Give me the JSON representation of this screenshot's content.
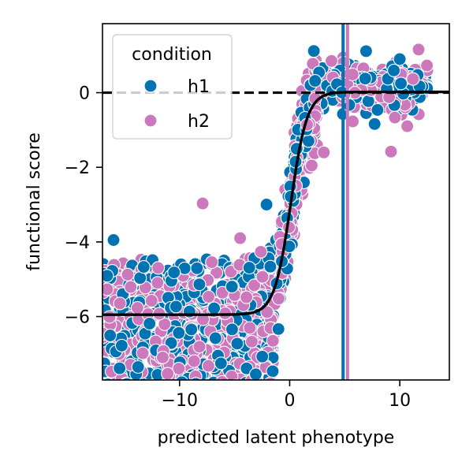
{
  "chart_data": {
    "type": "scatter",
    "xlabel": "predicted latent phenotype",
    "ylabel": "functional score",
    "xlim": [
      -17,
      14.5
    ],
    "ylim": [
      -7.7,
      1.85
    ],
    "xticks": [
      -10,
      0,
      10
    ],
    "xtick_labels": [
      "−10",
      "0",
      "10"
    ],
    "yticks": [
      0,
      -2,
      -4,
      -6
    ],
    "ytick_labels": [
      "0",
      "−2",
      "−4",
      "−6"
    ],
    "legend": {
      "title": "condition",
      "placement": "upper-left",
      "entries": [
        {
          "label": "h1",
          "color": "#0173b2"
        },
        {
          "label": "h2",
          "color": "#cc78bc"
        }
      ]
    },
    "series": [
      {
        "name": "h1",
        "color": "#0173b2",
        "vline_x": 4.85
      },
      {
        "name": "h2",
        "color": "#cc78bc",
        "vline_x": 5.25
      }
    ],
    "reference_hline": {
      "y": 0,
      "style": "dashed",
      "color": "#000000"
    },
    "fit_curve": {
      "type": "sigmoid",
      "lower": -5.95,
      "upper": 0.02,
      "midpoint": 0.1,
      "slope": 1.35,
      "color": "#000000"
    },
    "notable_points": [
      {
        "series": "h2",
        "x": -7.9,
        "y": -2.97
      },
      {
        "series": "h1",
        "x": -2.1,
        "y": -3.0
      },
      {
        "series": "h2",
        "x": -4.5,
        "y": -3.9
      },
      {
        "series": "h1",
        "x": -16.0,
        "y": -3.95
      },
      {
        "series": "h1",
        "x": 10.0,
        "y": 0.9
      },
      {
        "series": "h2",
        "x": 9.2,
        "y": -1.58
      },
      {
        "series": "h2",
        "x": 3.1,
        "y": -1.6
      },
      {
        "series": "h2",
        "x": 2.0,
        "y": -1.95
      },
      {
        "series": "h2",
        "x": 3.8,
        "y": 0.85
      }
    ],
    "grid": false
  }
}
